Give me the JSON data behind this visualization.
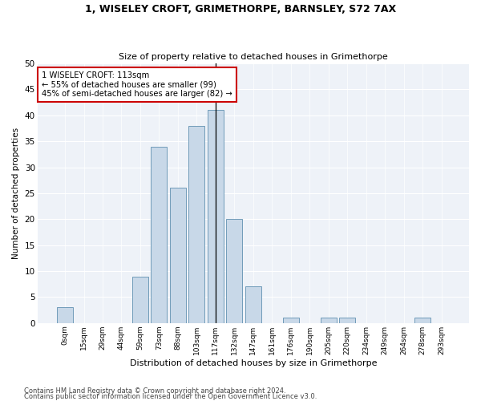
{
  "title1": "1, WISELEY CROFT, GRIMETHORPE, BARNSLEY, S72 7AX",
  "title2": "Size of property relative to detached houses in Grimethorpe",
  "xlabel": "Distribution of detached houses by size in Grimethorpe",
  "ylabel": "Number of detached properties",
  "footer1": "Contains HM Land Registry data © Crown copyright and database right 2024.",
  "footer2": "Contains public sector information licensed under the Open Government Licence v3.0.",
  "bar_labels": [
    "0sqm",
    "15sqm",
    "29sqm",
    "44sqm",
    "59sqm",
    "73sqm",
    "88sqm",
    "103sqm",
    "117sqm",
    "132sqm",
    "147sqm",
    "161sqm",
    "176sqm",
    "190sqm",
    "205sqm",
    "220sqm",
    "234sqm",
    "249sqm",
    "264sqm",
    "278sqm",
    "293sqm"
  ],
  "bar_values": [
    3,
    0,
    0,
    0,
    9,
    34,
    26,
    38,
    41,
    20,
    7,
    0,
    1,
    0,
    1,
    1,
    0,
    0,
    0,
    1,
    0
  ],
  "bar_color": "#c8d8e8",
  "bar_edgecolor": "#6090b0",
  "vline_color": "#000000",
  "annotation_box_edgecolor": "#cc0000",
  "property_size": 113,
  "pct_smaller": 55,
  "n_smaller": 99,
  "pct_larger": 45,
  "n_larger": 82,
  "ylim": [
    0,
    50
  ],
  "background_color": "#eef2f8",
  "grid_color": "#ffffff",
  "yticks": [
    0,
    5,
    10,
    15,
    20,
    25,
    30,
    35,
    40,
    45,
    50
  ]
}
